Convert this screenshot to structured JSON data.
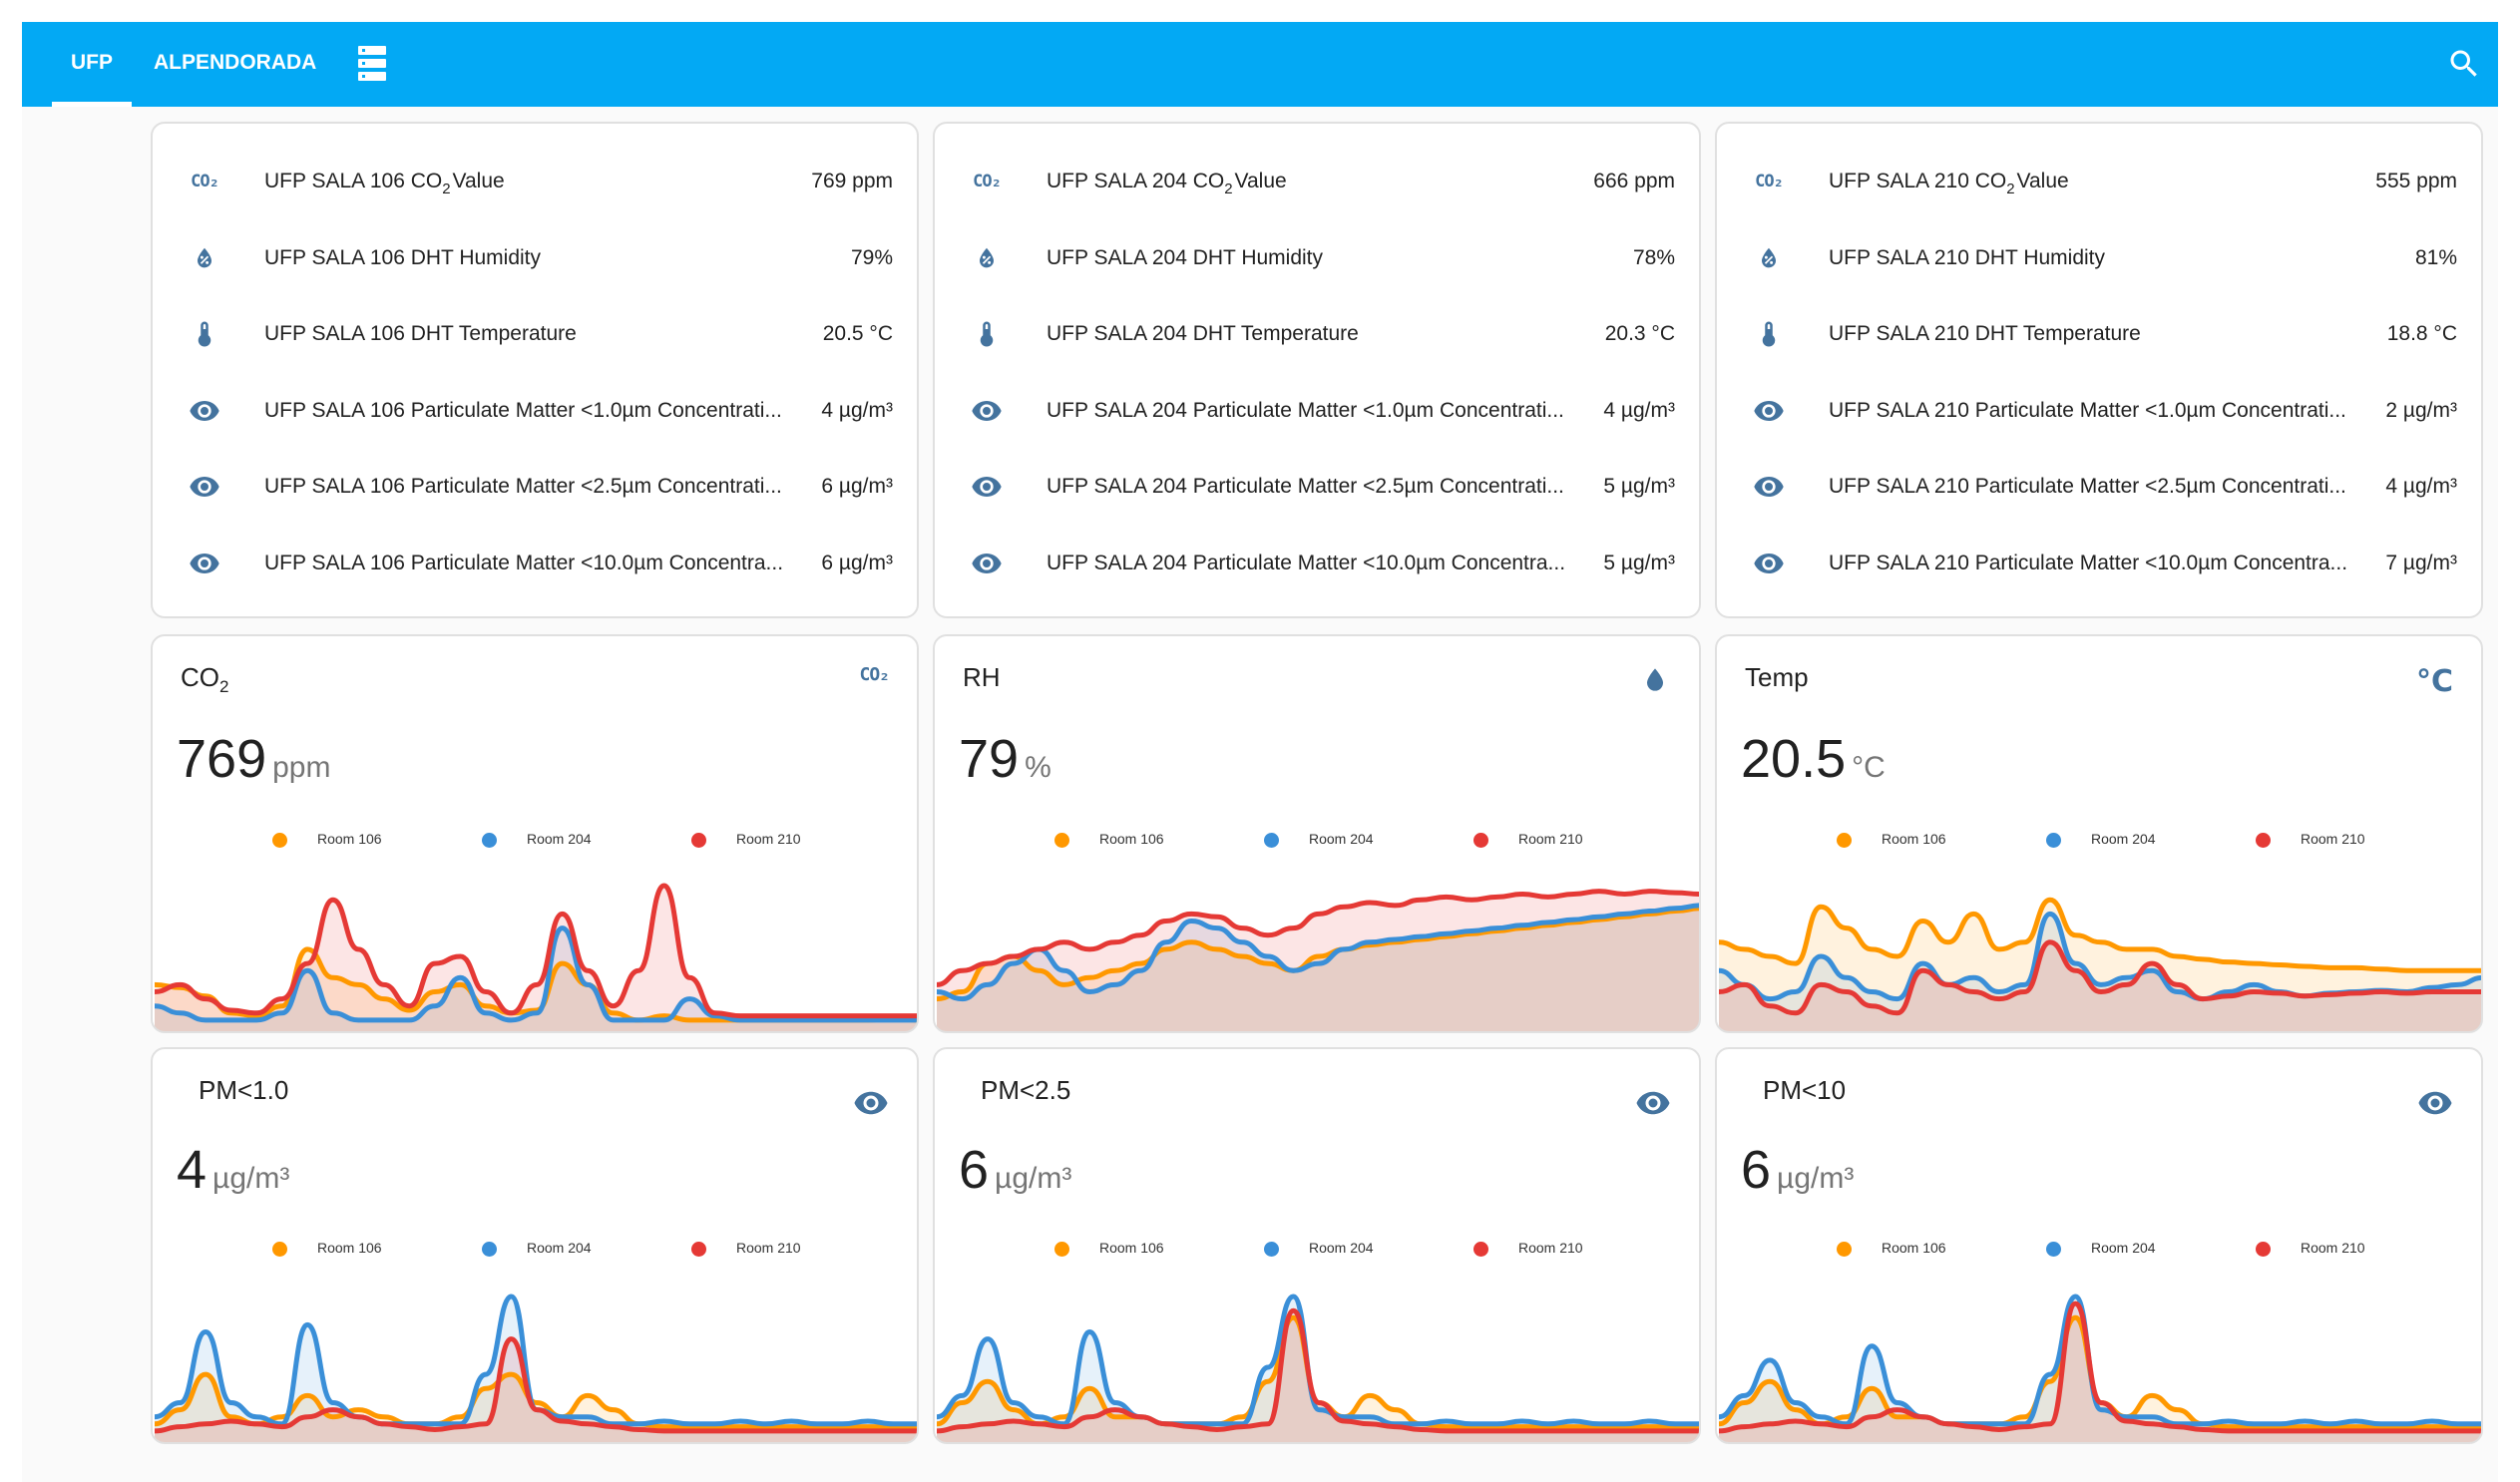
{
  "header": {
    "tabs": [
      {
        "label": "UFP"
      },
      {
        "label": "ALPENDORADA"
      }
    ],
    "active_tab": "UFP"
  },
  "colors": {
    "bar": "#03a9f4",
    "icon": "#44739e",
    "room106": "#ff9800",
    "room204": "#3a8fd8",
    "room210": "#e53935"
  },
  "entity_cards": [
    {
      "rows": [
        {
          "icon": "co2-icon",
          "icon_text": "CO₂",
          "name_prefix": "UFP SALA 106 CO",
          "name_sub": "2",
          "name_suffix": "Value",
          "value": "769 ppm"
        },
        {
          "icon": "water-percent-icon",
          "name": "UFP SALA 106 DHT Humidity",
          "value": "79%"
        },
        {
          "icon": "thermometer-icon",
          "name": "UFP SALA 106 DHT Temperature",
          "value": "20.5 °C"
        },
        {
          "icon": "eye-icon",
          "name": "UFP SALA 106 Particulate Matter <1.0µm Concentrati...",
          "value": "4 µg/m³"
        },
        {
          "icon": "eye-icon",
          "name": "UFP SALA 106 Particulate Matter <2.5µm Concentrati...",
          "value": "6 µg/m³"
        },
        {
          "icon": "eye-icon",
          "name": "UFP SALA 106 Particulate Matter <10.0µm Concentra...",
          "value": "6 µg/m³"
        }
      ]
    },
    {
      "rows": [
        {
          "icon": "co2-icon",
          "icon_text": "CO₂",
          "name_prefix": "UFP SALA 204 CO",
          "name_sub": "2",
          "name_suffix": "Value",
          "value": "666 ppm"
        },
        {
          "icon": "water-percent-icon",
          "name": "UFP SALA 204 DHT Humidity",
          "value": "78%"
        },
        {
          "icon": "thermometer-icon",
          "name": "UFP SALA 204 DHT Temperature",
          "value": "20.3 °C"
        },
        {
          "icon": "eye-icon",
          "name": "UFP SALA 204 Particulate Matter <1.0µm Concentrati...",
          "value": "4 µg/m³"
        },
        {
          "icon": "eye-icon",
          "name": "UFP SALA 204 Particulate Matter <2.5µm Concentrati...",
          "value": "5 µg/m³"
        },
        {
          "icon": "eye-icon",
          "name": "UFP SALA 204 Particulate Matter <10.0µm Concentra...",
          "value": "5 µg/m³"
        }
      ]
    },
    {
      "rows": [
        {
          "icon": "co2-icon",
          "icon_text": "CO₂",
          "name_prefix": "UFP SALA 210 CO",
          "name_sub": "2",
          "name_suffix": "Value",
          "value": "555 ppm"
        },
        {
          "icon": "water-percent-icon",
          "name": "UFP SALA 210 DHT Humidity",
          "value": "81%"
        },
        {
          "icon": "thermometer-icon",
          "name": "UFP SALA 210 DHT Temperature",
          "value": "18.8 °C"
        },
        {
          "icon": "eye-icon",
          "name": "UFP SALA 210 Particulate Matter <1.0µm Concentrati...",
          "value": "2 µg/m³"
        },
        {
          "icon": "eye-icon",
          "name": "UFP SALA 210 Particulate Matter <2.5µm Concentrati...",
          "value": "4 µg/m³"
        },
        {
          "icon": "eye-icon",
          "name": "UFP SALA 210 Particulate Matter <10.0µm Concentra...",
          "value": "7 µg/m³"
        }
      ]
    }
  ],
  "graph_cards": [
    {
      "title": "CO",
      "title_sub": "2",
      "icon": "co2-icon",
      "icon_text": "CO₂",
      "value": "769",
      "unit": "ppm"
    },
    {
      "title": "RH",
      "title_sub": "",
      "icon": "water-icon",
      "value": "79",
      "unit": "%"
    },
    {
      "title": "Temp",
      "title_sub": "",
      "icon": "celsius-icon",
      "icon_text": "°C",
      "value": "20.5",
      "unit": "°C"
    },
    {
      "title": "PM<1.0",
      "title_sub": "",
      "icon": "eye-icon",
      "value": "4",
      "unit": "µg/m³"
    },
    {
      "title": "PM<2.5",
      "title_sub": "",
      "icon": "eye-icon",
      "value": "6",
      "unit": "µg/m³"
    },
    {
      "title": "PM<10",
      "title_sub": "",
      "icon": "eye-icon",
      "value": "6",
      "unit": "µg/m³"
    }
  ],
  "legend": [
    "Room 106",
    "Room 204",
    "Room 210"
  ],
  "chart_data": [
    {
      "type": "area",
      "title": "CO2",
      "series": [
        {
          "name": "Room 106",
          "values": [
            0.3,
            0.28,
            0.22,
            0.1,
            0.08,
            0.15,
            0.55,
            0.35,
            0.3,
            0.2,
            0.12,
            0.25,
            0.3,
            0.15,
            0.1,
            0.12,
            0.45,
            0.3,
            0.1,
            0.05,
            0.08,
            0.05,
            0.05,
            0.05,
            0.05,
            0.05,
            0.05,
            0.05,
            0.05,
            0.06,
            0.05
          ]
        },
        {
          "name": "Room 204",
          "values": [
            0.15,
            0.1,
            0.05,
            0.05,
            0.05,
            0.1,
            0.4,
            0.1,
            0.05,
            0.05,
            0.05,
            0.15,
            0.35,
            0.1,
            0.05,
            0.1,
            0.7,
            0.3,
            0.05,
            0.05,
            0.05,
            0.2,
            0.08,
            0.05,
            0.05,
            0.05,
            0.05,
            0.05,
            0.05,
            0.05,
            0.05
          ]
        },
        {
          "name": "Room 210",
          "values": [
            0.25,
            0.3,
            0.2,
            0.12,
            0.1,
            0.2,
            0.45,
            0.9,
            0.55,
            0.3,
            0.15,
            0.45,
            0.5,
            0.25,
            0.1,
            0.3,
            0.8,
            0.4,
            0.15,
            0.4,
            1.0,
            0.35,
            0.1,
            0.08,
            0.08,
            0.08,
            0.08,
            0.08,
            0.08,
            0.08,
            0.08
          ]
        }
      ]
    },
    {
      "type": "area",
      "title": "RH",
      "series": [
        {
          "name": "Room 106",
          "values": [
            0.2,
            0.25,
            0.45,
            0.5,
            0.4,
            0.3,
            0.35,
            0.4,
            0.45,
            0.55,
            0.6,
            0.55,
            0.5,
            0.45,
            0.4,
            0.5,
            0.55,
            0.58,
            0.6,
            0.62,
            0.64,
            0.66,
            0.68,
            0.7,
            0.72,
            0.74,
            0.76,
            0.78,
            0.8,
            0.82,
            0.84
          ]
        },
        {
          "name": "Room 204",
          "values": [
            0.25,
            0.2,
            0.3,
            0.45,
            0.55,
            0.4,
            0.25,
            0.3,
            0.4,
            0.6,
            0.75,
            0.7,
            0.6,
            0.5,
            0.4,
            0.45,
            0.55,
            0.6,
            0.62,
            0.64,
            0.66,
            0.68,
            0.7,
            0.72,
            0.74,
            0.76,
            0.78,
            0.8,
            0.82,
            0.84,
            0.86
          ]
        },
        {
          "name": "Room 210",
          "values": [
            0.3,
            0.4,
            0.45,
            0.5,
            0.55,
            0.6,
            0.55,
            0.6,
            0.65,
            0.75,
            0.8,
            0.78,
            0.7,
            0.65,
            0.7,
            0.8,
            0.85,
            0.88,
            0.86,
            0.9,
            0.92,
            0.9,
            0.92,
            0.94,
            0.92,
            0.94,
            0.96,
            0.94,
            0.96,
            0.95,
            0.94
          ]
        }
      ]
    },
    {
      "type": "area",
      "title": "Temp",
      "series": [
        {
          "name": "Room 106",
          "values": [
            0.6,
            0.55,
            0.5,
            0.45,
            0.85,
            0.7,
            0.55,
            0.5,
            0.75,
            0.6,
            0.8,
            0.55,
            0.6,
            0.9,
            0.65,
            0.6,
            0.55,
            0.55,
            0.5,
            0.48,
            0.46,
            0.45,
            0.44,
            0.43,
            0.42,
            0.42,
            0.41,
            0.4,
            0.4,
            0.4,
            0.4
          ]
        },
        {
          "name": "Room 204",
          "values": [
            0.4,
            0.3,
            0.2,
            0.25,
            0.5,
            0.35,
            0.25,
            0.2,
            0.45,
            0.3,
            0.35,
            0.25,
            0.3,
            0.8,
            0.45,
            0.3,
            0.35,
            0.4,
            0.25,
            0.2,
            0.25,
            0.3,
            0.25,
            0.22,
            0.24,
            0.25,
            0.26,
            0.25,
            0.28,
            0.3,
            0.35
          ]
        },
        {
          "name": "Room 210",
          "values": [
            0.25,
            0.3,
            0.15,
            0.1,
            0.3,
            0.25,
            0.15,
            0.1,
            0.4,
            0.3,
            0.25,
            0.2,
            0.25,
            0.6,
            0.4,
            0.25,
            0.3,
            0.45,
            0.3,
            0.2,
            0.22,
            0.25,
            0.24,
            0.22,
            0.23,
            0.24,
            0.25,
            0.24,
            0.25,
            0.25,
            0.25
          ]
        }
      ]
    },
    {
      "type": "area",
      "title": "PM<1.0",
      "series": [
        {
          "name": "Room 106",
          "values": [
            0.1,
            0.2,
            0.45,
            0.15,
            0.1,
            0.15,
            0.3,
            0.15,
            0.2,
            0.15,
            0.1,
            0.1,
            0.15,
            0.35,
            0.45,
            0.25,
            0.15,
            0.3,
            0.2,
            0.1,
            0.08,
            0.08,
            0.08,
            0.08,
            0.08,
            0.08,
            0.08,
            0.08,
            0.08,
            0.08,
            0.08
          ]
        },
        {
          "name": "Room 204",
          "values": [
            0.15,
            0.25,
            0.75,
            0.25,
            0.15,
            0.1,
            0.8,
            0.25,
            0.15,
            0.1,
            0.1,
            0.1,
            0.1,
            0.45,
            1.0,
            0.2,
            0.15,
            0.15,
            0.1,
            0.1,
            0.12,
            0.1,
            0.1,
            0.12,
            0.1,
            0.12,
            0.1,
            0.1,
            0.12,
            0.1,
            0.1
          ]
        },
        {
          "name": "Room 210",
          "values": [
            0.05,
            0.08,
            0.1,
            0.12,
            0.1,
            0.08,
            0.15,
            0.2,
            0.15,
            0.1,
            0.08,
            0.06,
            0.08,
            0.1,
            0.7,
            0.2,
            0.12,
            0.1,
            0.08,
            0.06,
            0.05,
            0.05,
            0.05,
            0.05,
            0.05,
            0.05,
            0.05,
            0.05,
            0.05,
            0.05,
            0.05
          ]
        }
      ]
    },
    {
      "type": "area",
      "title": "PM<2.5",
      "series": [
        {
          "name": "Room 106",
          "values": [
            0.1,
            0.25,
            0.4,
            0.2,
            0.1,
            0.15,
            0.35,
            0.15,
            0.15,
            0.1,
            0.1,
            0.1,
            0.15,
            0.4,
            0.85,
            0.25,
            0.15,
            0.3,
            0.2,
            0.1,
            0.08,
            0.08,
            0.08,
            0.08,
            0.08,
            0.08,
            0.08,
            0.08,
            0.08,
            0.08,
            0.08
          ]
        },
        {
          "name": "Room 204",
          "values": [
            0.15,
            0.3,
            0.7,
            0.25,
            0.15,
            0.1,
            0.75,
            0.25,
            0.15,
            0.1,
            0.1,
            0.1,
            0.1,
            0.5,
            1.0,
            0.2,
            0.15,
            0.15,
            0.1,
            0.1,
            0.12,
            0.1,
            0.1,
            0.12,
            0.1,
            0.12,
            0.1,
            0.1,
            0.12,
            0.1,
            0.1
          ]
        },
        {
          "name": "Room 210",
          "values": [
            0.05,
            0.08,
            0.1,
            0.12,
            0.1,
            0.08,
            0.15,
            0.2,
            0.15,
            0.1,
            0.08,
            0.06,
            0.08,
            0.1,
            0.9,
            0.25,
            0.12,
            0.1,
            0.08,
            0.06,
            0.05,
            0.05,
            0.05,
            0.05,
            0.05,
            0.05,
            0.05,
            0.05,
            0.05,
            0.05,
            0.05
          ]
        }
      ]
    },
    {
      "type": "area",
      "title": "PM<10",
      "series": [
        {
          "name": "Room 106",
          "values": [
            0.1,
            0.25,
            0.4,
            0.2,
            0.1,
            0.15,
            0.35,
            0.15,
            0.15,
            0.1,
            0.1,
            0.1,
            0.15,
            0.4,
            0.85,
            0.25,
            0.15,
            0.3,
            0.2,
            0.1,
            0.08,
            0.08,
            0.08,
            0.08,
            0.08,
            0.08,
            0.08,
            0.08,
            0.08,
            0.08,
            0.08
          ]
        },
        {
          "name": "Room 204",
          "values": [
            0.15,
            0.3,
            0.55,
            0.25,
            0.15,
            0.1,
            0.65,
            0.25,
            0.15,
            0.1,
            0.1,
            0.1,
            0.1,
            0.45,
            1.0,
            0.2,
            0.15,
            0.15,
            0.1,
            0.1,
            0.12,
            0.1,
            0.1,
            0.12,
            0.1,
            0.12,
            0.1,
            0.1,
            0.12,
            0.1,
            0.1
          ]
        },
        {
          "name": "Room 210",
          "values": [
            0.05,
            0.08,
            0.1,
            0.12,
            0.1,
            0.08,
            0.15,
            0.2,
            0.15,
            0.1,
            0.08,
            0.06,
            0.08,
            0.1,
            0.95,
            0.25,
            0.12,
            0.1,
            0.08,
            0.06,
            0.05,
            0.05,
            0.05,
            0.05,
            0.05,
            0.05,
            0.05,
            0.05,
            0.05,
            0.05,
            0.05
          ]
        }
      ]
    }
  ]
}
